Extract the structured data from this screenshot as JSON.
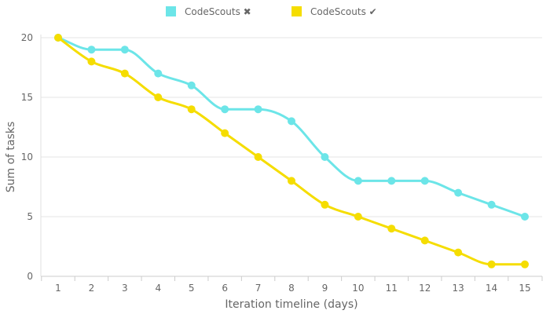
{
  "chart_data": {
    "type": "line",
    "title": "",
    "xlabel": "Iteration timeline (days)",
    "ylabel": "Sum of tasks",
    "x": [
      1,
      2,
      3,
      4,
      5,
      6,
      7,
      8,
      9,
      10,
      11,
      12,
      13,
      14,
      15
    ],
    "ylim": [
      0,
      20
    ],
    "yticks": [
      0,
      5,
      10,
      15,
      20
    ],
    "grid": "horizontal",
    "legend_position": "top-center",
    "curve": "smooth",
    "series": [
      {
        "name": "CodeScouts ✖",
        "color": "#6ce5e8",
        "values": [
          20,
          19,
          19,
          17,
          16,
          14,
          14,
          13,
          10,
          8,
          8,
          8,
          7,
          6,
          5
        ]
      },
      {
        "name": "CodeScouts ✔",
        "color": "#f5dd00",
        "values": [
          20,
          18,
          17,
          15,
          14,
          12,
          10,
          8,
          6,
          5,
          4,
          3,
          2,
          1,
          1
        ]
      }
    ]
  }
}
